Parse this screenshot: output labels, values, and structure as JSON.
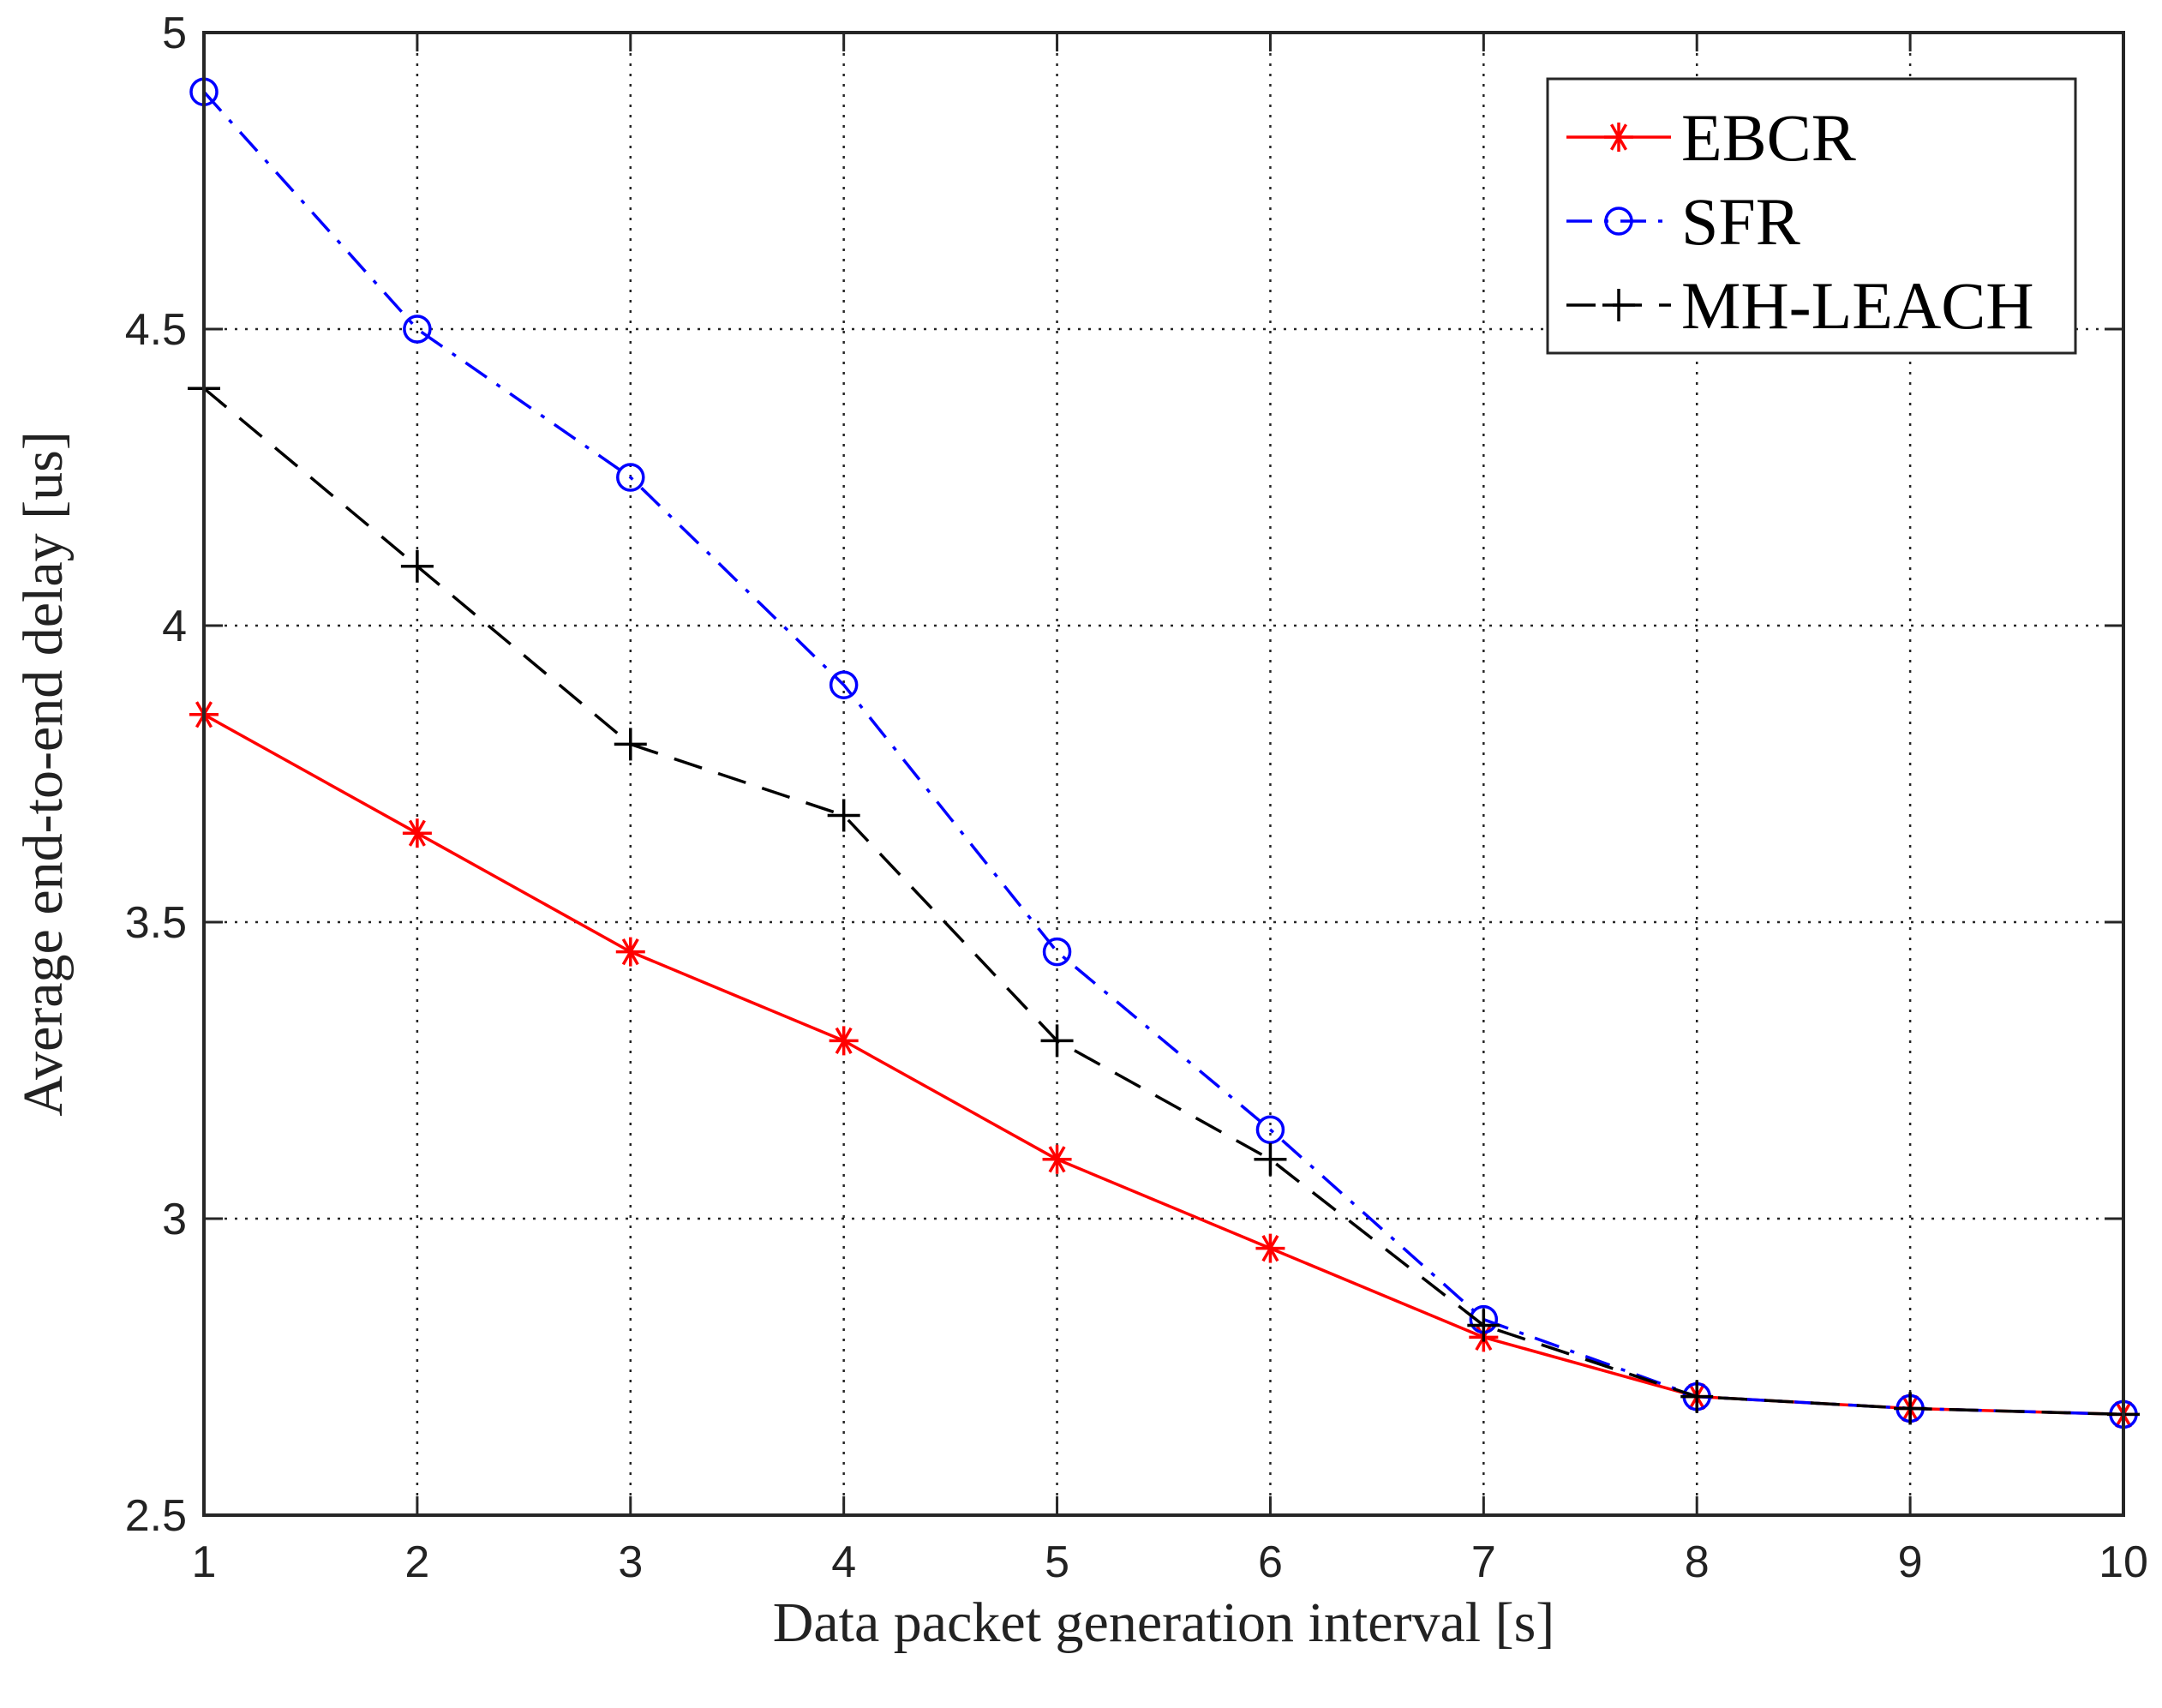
{
  "chart_data": {
    "type": "line",
    "title": "",
    "xlabel": "Data packet generation interval [s]",
    "ylabel": "Average end-to-end delay [us]",
    "xlim": [
      1,
      10
    ],
    "ylim": [
      2.5,
      5
    ],
    "grid": true,
    "legend_position": "top-right",
    "x_ticks": [
      "1",
      "2",
      "3",
      "4",
      "5",
      "6",
      "7",
      "8",
      "9",
      "10"
    ],
    "y_ticks": [
      "2.5",
      "3",
      "3.5",
      "4",
      "4.5",
      "5"
    ],
    "x": [
      1,
      2,
      3,
      4,
      5,
      6,
      7,
      8,
      9,
      10
    ],
    "series": [
      {
        "name": "EBCR",
        "color": "#ff0000",
        "line_style": "solid",
        "marker": "asterisk",
        "values": [
          3.85,
          3.65,
          3.45,
          3.3,
          3.1,
          2.95,
          2.8,
          2.7,
          2.68,
          2.67
        ]
      },
      {
        "name": "SFR",
        "color": "#0000ff",
        "line_style": "dash-dot",
        "marker": "circle",
        "values": [
          4.9,
          4.5,
          4.25,
          3.9,
          3.45,
          3.15,
          2.83,
          2.7,
          2.68,
          2.67
        ]
      },
      {
        "name": "MH-LEACH",
        "color": "#000000",
        "line_style": "dashed",
        "marker": "plus",
        "values": [
          4.4,
          4.1,
          3.8,
          3.68,
          3.3,
          3.1,
          2.82,
          2.7,
          2.68,
          2.67
        ]
      }
    ]
  }
}
